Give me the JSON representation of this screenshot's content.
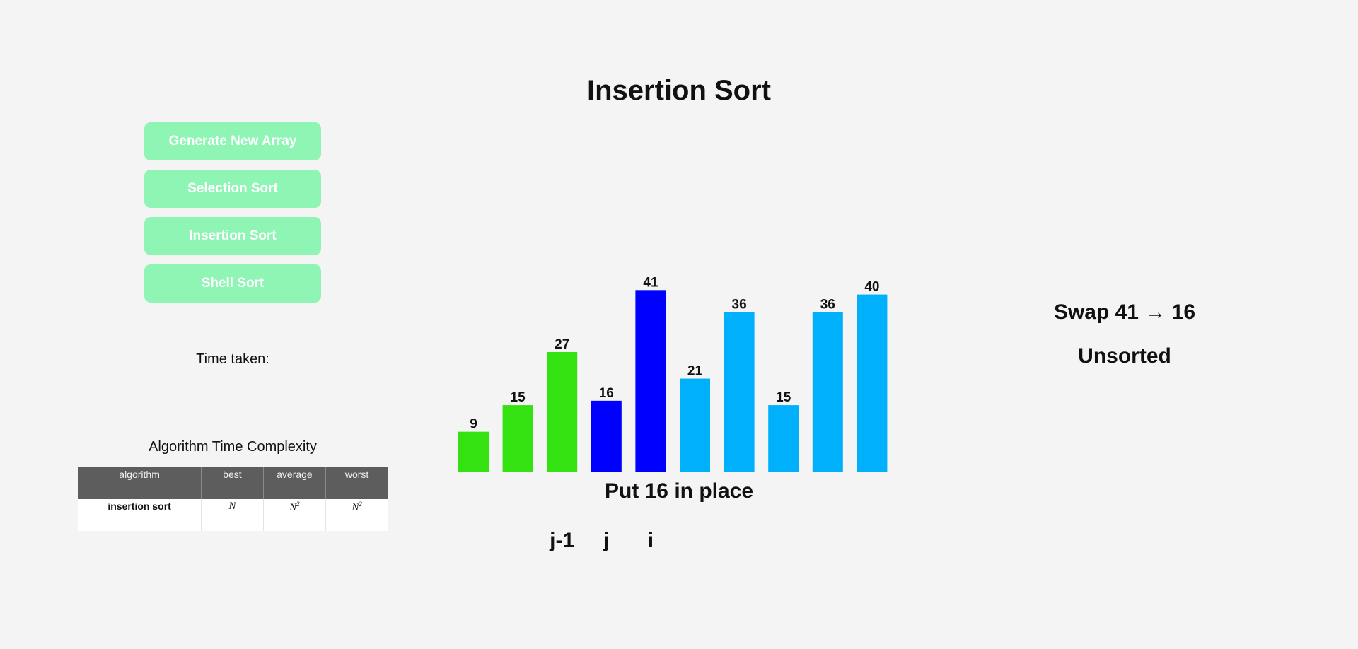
{
  "page": {
    "title": "Insertion Sort"
  },
  "buttons": {
    "generate": "Generate New Array",
    "selection": "Selection Sort",
    "insertion": "Insertion Sort",
    "shell": "Shell Sort"
  },
  "timing": {
    "label": "Time taken:"
  },
  "complexity": {
    "title": "Algorithm Time Complexity",
    "headers": [
      "algorithm",
      "best",
      "average",
      "worst"
    ],
    "row": {
      "algorithm": "insertion sort",
      "best": "N",
      "average": "N",
      "average_exp": "2",
      "worst": "N",
      "worst_exp": "2"
    }
  },
  "colors": {
    "sorted": "#33e210",
    "active": "#0000ff",
    "unsorted": "#00b0fa",
    "button": "#8ff5b4"
  },
  "chart_data": {
    "type": "bar",
    "values": [
      9,
      15,
      27,
      16,
      41,
      21,
      36,
      15,
      36,
      40
    ],
    "states": [
      "sorted",
      "sorted",
      "sorted",
      "active",
      "active",
      "unsorted",
      "unsorted",
      "unsorted",
      "unsorted",
      "unsorted"
    ],
    "title": "",
    "xlabel": "",
    "ylabel": ""
  },
  "step": {
    "caption": "Put 16 in place",
    "pointers": [
      {
        "label": "j-1",
        "index": 2
      },
      {
        "label": "j",
        "index": 3
      },
      {
        "label": "i",
        "index": 4
      }
    ]
  },
  "status": {
    "swap": "Swap 41 → 16",
    "state": "Unsorted"
  }
}
